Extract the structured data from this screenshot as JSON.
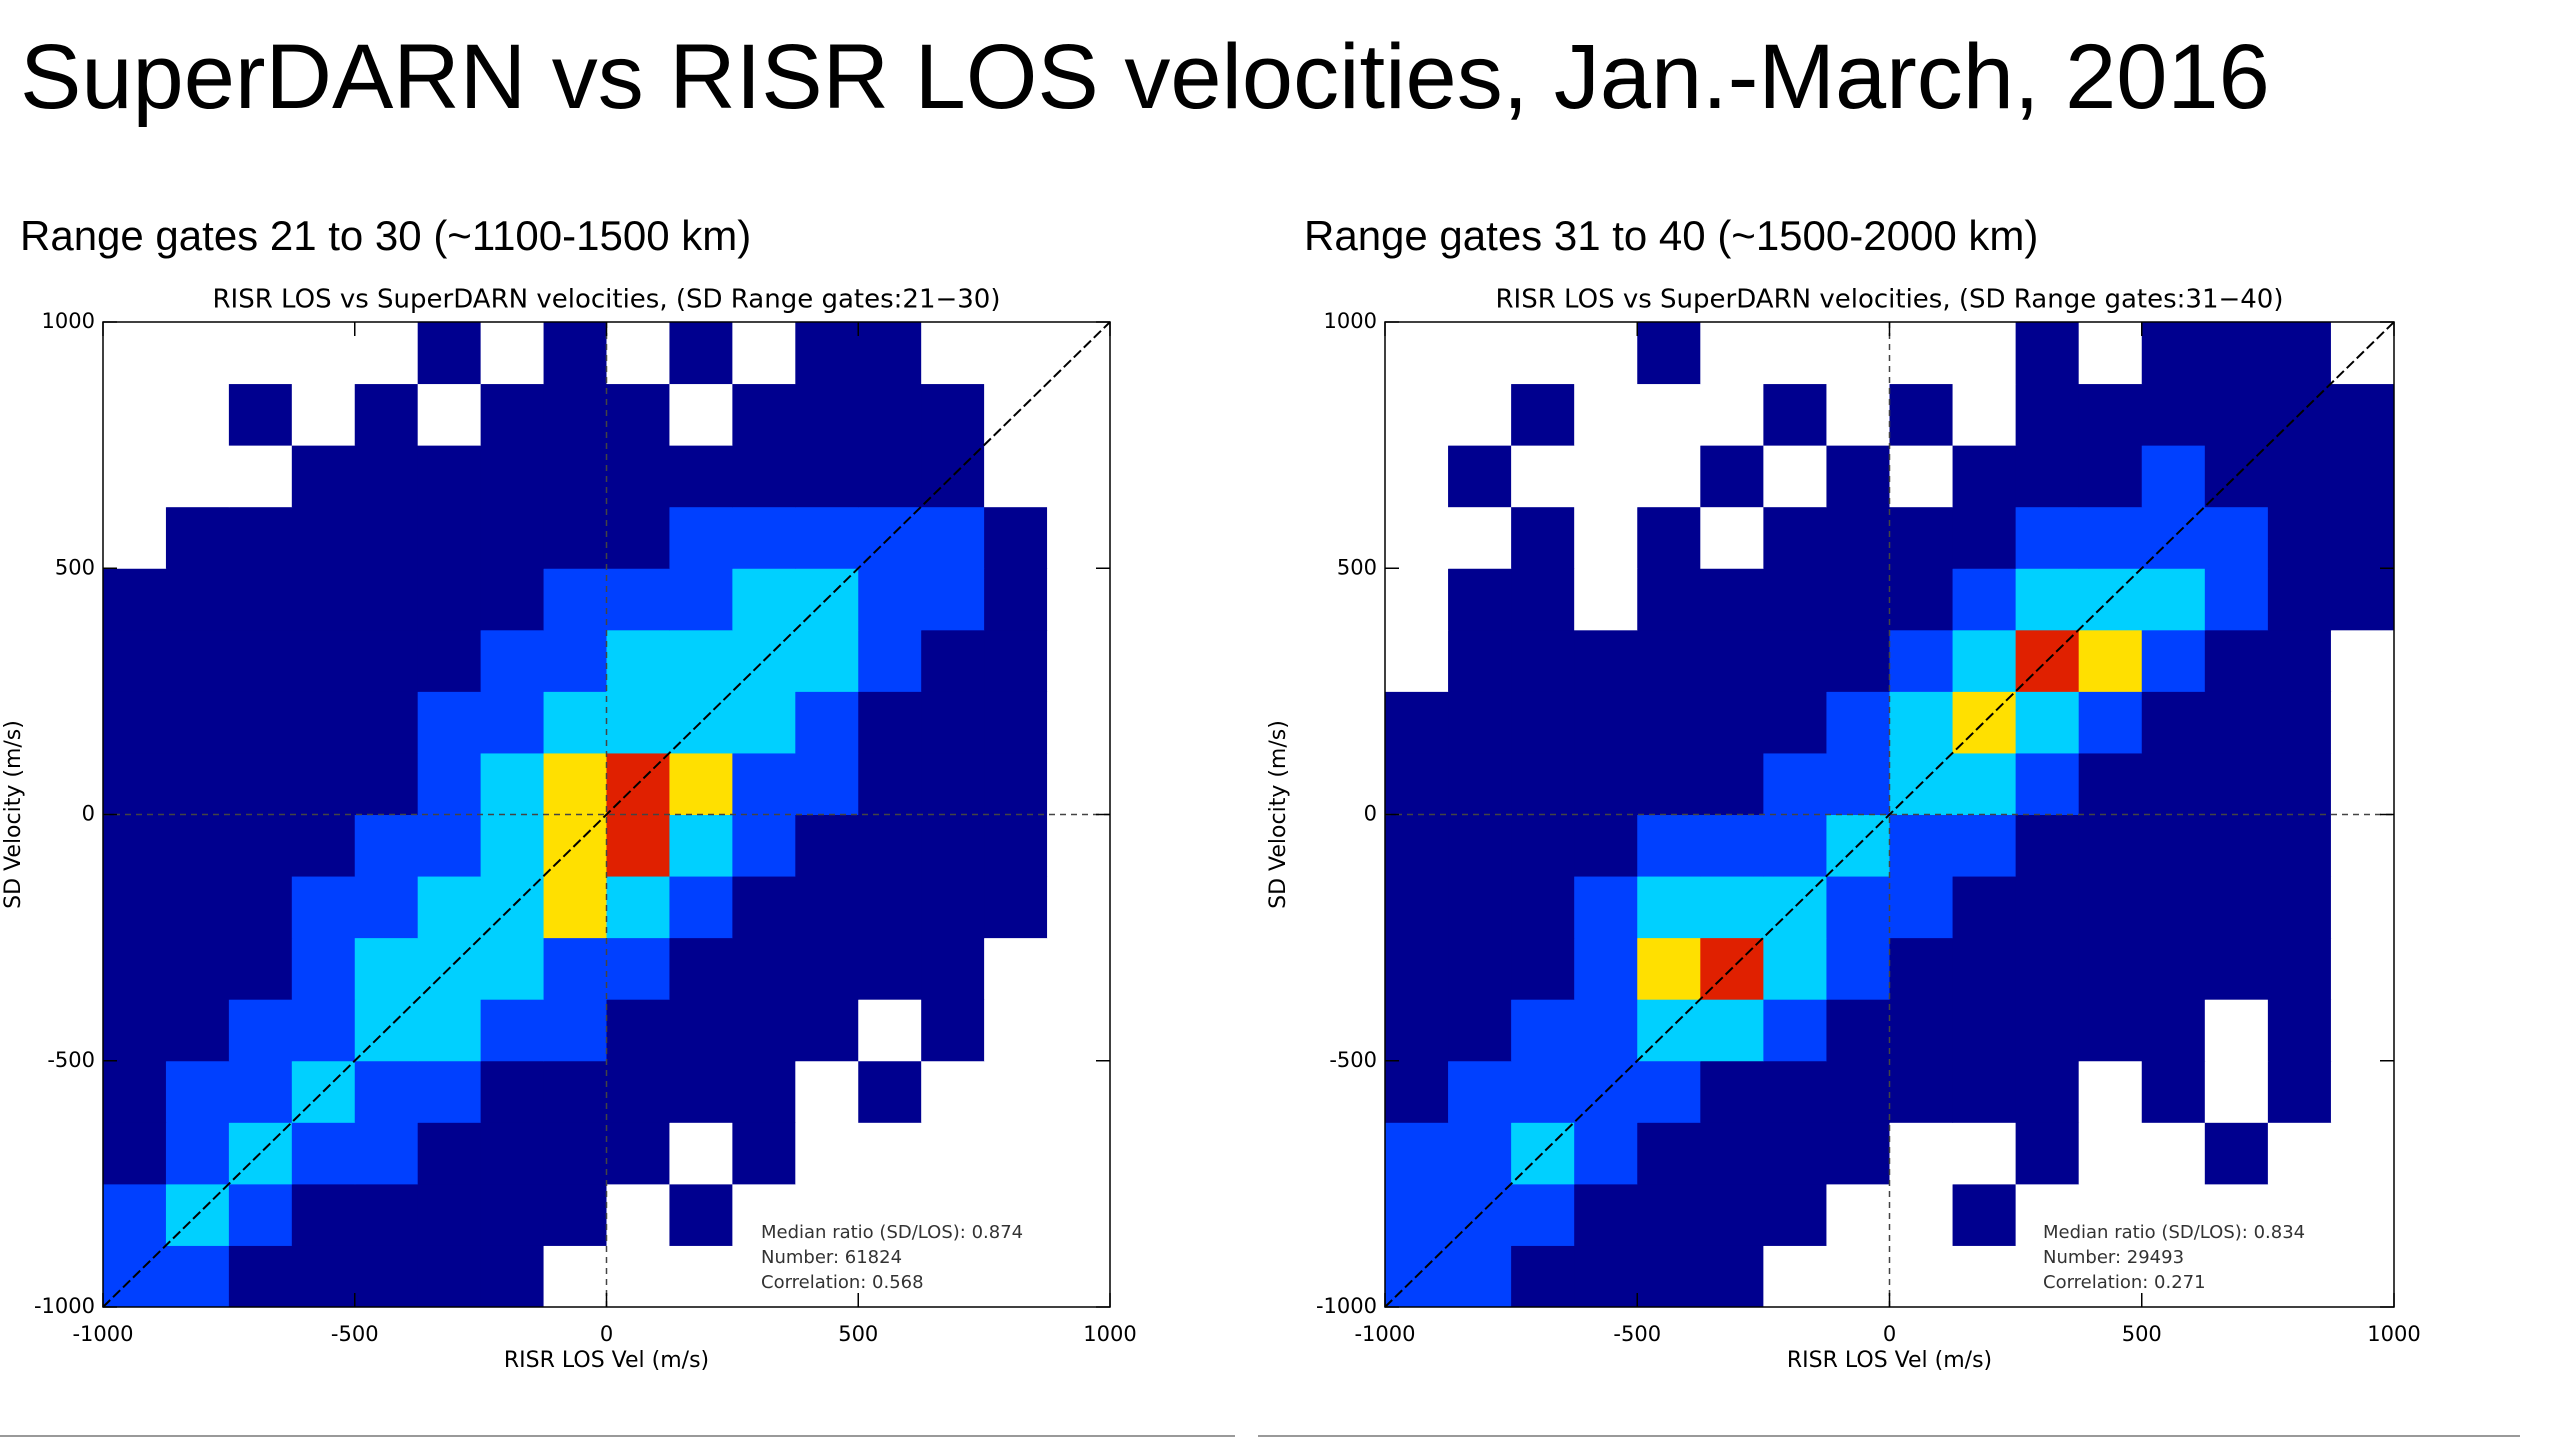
{
  "title": "SuperDARN vs RISR LOS velocities, Jan.-March, 2016",
  "chart_data": [
    {
      "type": "histogram2d",
      "subtitle": "Range gates 21 to 30 (~1100-1500 km)",
      "title": "RISR LOS vs SuperDARN velocities, (SD Range gates:21−30)",
      "xlabel": "RISR LOS Vel (m/s)",
      "ylabel": "SD Velocity (m/s)",
      "xlim": [
        -1000,
        1000
      ],
      "ylim": [
        -1000,
        1000
      ],
      "xticks": [
        -1000,
        -500,
        0,
        500,
        1000
      ],
      "yticks": [
        -1000,
        -500,
        0,
        500,
        1000
      ],
      "xbins": [
        -1000,
        -875,
        -750,
        -625,
        -500,
        -375,
        -250,
        -125,
        0,
        125,
        250,
        375,
        500,
        625,
        750,
        875,
        1000
      ],
      "ybins": [
        -1000,
        -875,
        -750,
        -625,
        -500,
        -375,
        -250,
        -125,
        0,
        125,
        250,
        375,
        500,
        625,
        750,
        875,
        1000
      ],
      "colorscale": [
        "#ffffff",
        "#00008f",
        "#0040ff",
        "#00d0ff",
        "#ffe000",
        "#e02000"
      ],
      "z": [
        [
          2,
          2,
          1,
          1,
          1,
          1,
          1,
          0,
          0,
          0,
          0,
          0,
          0,
          0,
          0,
          0
        ],
        [
          2,
          3,
          2,
          1,
          1,
          1,
          1,
          1,
          0,
          1,
          0,
          0,
          0,
          0,
          0,
          0
        ],
        [
          1,
          2,
          3,
          2,
          2,
          1,
          1,
          1,
          1,
          0,
          1,
          0,
          0,
          0,
          0,
          0
        ],
        [
          1,
          2,
          2,
          3,
          2,
          2,
          1,
          1,
          1,
          1,
          1,
          0,
          1,
          0,
          0,
          0
        ],
        [
          1,
          1,
          2,
          2,
          3,
          3,
          2,
          2,
          1,
          1,
          1,
          1,
          0,
          1,
          0,
          0
        ],
        [
          1,
          1,
          1,
          2,
          3,
          3,
          3,
          2,
          2,
          1,
          1,
          1,
          1,
          1,
          0,
          0
        ],
        [
          1,
          1,
          1,
          2,
          2,
          3,
          3,
          4,
          3,
          2,
          1,
          1,
          1,
          1,
          1,
          0
        ],
        [
          1,
          1,
          1,
          1,
          2,
          2,
          3,
          4,
          5,
          3,
          2,
          1,
          1,
          1,
          1,
          0
        ],
        [
          1,
          1,
          1,
          1,
          1,
          2,
          3,
          4,
          5,
          4,
          2,
          2,
          1,
          1,
          1,
          0
        ],
        [
          1,
          1,
          1,
          1,
          1,
          2,
          2,
          3,
          3,
          3,
          3,
          2,
          1,
          1,
          1,
          0
        ],
        [
          1,
          1,
          1,
          1,
          1,
          1,
          2,
          2,
          3,
          3,
          3,
          3,
          2,
          1,
          1,
          0
        ],
        [
          1,
          1,
          1,
          1,
          1,
          1,
          1,
          2,
          2,
          2,
          3,
          3,
          2,
          2,
          1,
          0
        ],
        [
          0,
          1,
          1,
          1,
          1,
          1,
          1,
          1,
          1,
          2,
          2,
          2,
          2,
          2,
          1,
          0
        ],
        [
          0,
          0,
          0,
          1,
          1,
          1,
          1,
          1,
          1,
          1,
          1,
          1,
          1,
          1,
          0,
          0
        ],
        [
          0,
          0,
          1,
          0,
          1,
          0,
          1,
          1,
          1,
          0,
          1,
          1,
          1,
          1,
          0,
          0
        ],
        [
          0,
          0,
          0,
          0,
          0,
          1,
          0,
          1,
          0,
          1,
          0,
          1,
          1,
          0,
          0,
          0
        ]
      ],
      "annotations": [
        "Median ratio (SD/LOS): 0.874",
        "Number:  61824",
        "Correlation: 0.568"
      ]
    },
    {
      "type": "histogram2d",
      "subtitle": "Range gates 31 to 40 (~1500-2000 km)",
      "title": "RISR LOS vs SuperDARN velocities, (SD Range gates:31−40)",
      "xlabel": "RISR LOS Vel (m/s)",
      "ylabel": "SD Velocity (m/s)",
      "xlim": [
        -1000,
        1000
      ],
      "ylim": [
        -1000,
        1000
      ],
      "xticks": [
        -1000,
        -500,
        0,
        500,
        1000
      ],
      "yticks": [
        -1000,
        -500,
        0,
        500,
        1000
      ],
      "xbins": [
        -1000,
        -875,
        -750,
        -625,
        -500,
        -375,
        -250,
        -125,
        0,
        125,
        250,
        375,
        500,
        625,
        750,
        875,
        1000
      ],
      "ybins": [
        -1000,
        -875,
        -750,
        -625,
        -500,
        -375,
        -250,
        -125,
        0,
        125,
        250,
        375,
        500,
        625,
        750,
        875,
        1000
      ],
      "colorscale": [
        "#ffffff",
        "#00008f",
        "#0040ff",
        "#00d0ff",
        "#ffe000",
        "#e02000"
      ],
      "z": [
        [
          2,
          2,
          1,
          1,
          1,
          1,
          0,
          0,
          0,
          0,
          0,
          0,
          0,
          0,
          0,
          0
        ],
        [
          2,
          2,
          2,
          1,
          1,
          1,
          1,
          0,
          0,
          1,
          0,
          0,
          0,
          0,
          0,
          0
        ],
        [
          2,
          2,
          3,
          2,
          1,
          1,
          1,
          1,
          0,
          0,
          1,
          0,
          0,
          1,
          0,
          0
        ],
        [
          1,
          2,
          2,
          2,
          2,
          1,
          1,
          1,
          1,
          1,
          1,
          0,
          1,
          0,
          1,
          0
        ],
        [
          1,
          1,
          2,
          2,
          3,
          3,
          2,
          1,
          1,
          1,
          1,
          1,
          1,
          0,
          1,
          0
        ],
        [
          1,
          1,
          1,
          2,
          4,
          5,
          3,
          2,
          1,
          1,
          1,
          1,
          1,
          1,
          1,
          0
        ],
        [
          1,
          1,
          1,
          2,
          3,
          3,
          3,
          2,
          2,
          1,
          1,
          1,
          1,
          1,
          1,
          0
        ],
        [
          1,
          1,
          1,
          1,
          2,
          2,
          2,
          3,
          2,
          2,
          1,
          1,
          1,
          1,
          1,
          0
        ],
        [
          1,
          1,
          1,
          1,
          1,
          1,
          2,
          2,
          3,
          3,
          2,
          1,
          1,
          1,
          1,
          0
        ],
        [
          1,
          1,
          1,
          1,
          1,
          1,
          1,
          2,
          3,
          4,
          3,
          2,
          1,
          1,
          1,
          0
        ],
        [
          0,
          1,
          1,
          1,
          1,
          1,
          1,
          1,
          2,
          3,
          5,
          4,
          2,
          1,
          1,
          0
        ],
        [
          0,
          1,
          1,
          0,
          1,
          1,
          1,
          1,
          1,
          2,
          3,
          3,
          3,
          2,
          1,
          1
        ],
        [
          0,
          0,
          1,
          0,
          1,
          0,
          1,
          1,
          1,
          1,
          2,
          2,
          2,
          2,
          1,
          1
        ],
        [
          0,
          1,
          0,
          0,
          0,
          1,
          0,
          1,
          0,
          1,
          1,
          1,
          2,
          1,
          1,
          1
        ],
        [
          0,
          0,
          1,
          0,
          0,
          0,
          1,
          0,
          1,
          0,
          1,
          1,
          1,
          1,
          1,
          1
        ],
        [
          0,
          0,
          0,
          0,
          1,
          0,
          0,
          0,
          0,
          0,
          1,
          0,
          1,
          1,
          1,
          0
        ]
      ],
      "annotations": [
        "Median ratio (SD/LOS): 0.834",
        "Number:  29493",
        "Correlation: 0.271"
      ]
    }
  ]
}
